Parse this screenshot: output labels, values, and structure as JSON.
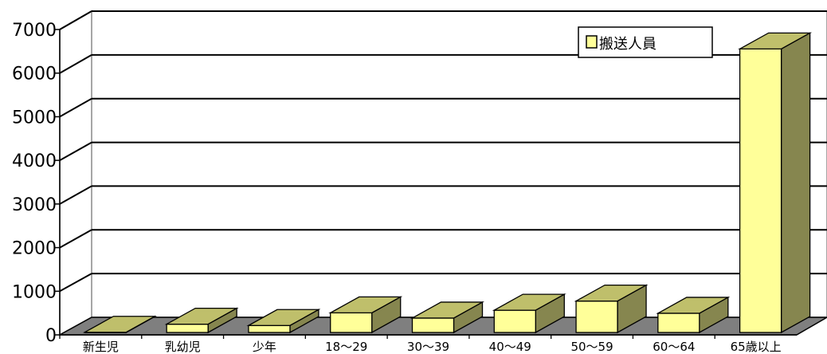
{
  "chart_data": {
    "type": "bar",
    "categories": [
      "新生児",
      "乳幼児",
      "少年",
      "18～29",
      "30～39",
      "40～49",
      "50～59",
      "60～64",
      "65歳以上"
    ],
    "series": [
      {
        "name": "搬送人員",
        "values": [
          5,
          190,
          160,
          450,
          330,
          510,
          720,
          440,
          6500
        ]
      }
    ],
    "y_ticks": [
      "0",
      "1000",
      "2000",
      "3000",
      "4000",
      "5000",
      "6000",
      "7000"
    ],
    "ylim": [
      0,
      7000
    ],
    "grid": true,
    "legend_position": "top-right",
    "colors": {
      "bar_front": "#ffff99",
      "bar_top": "#bfbf6b",
      "bar_side": "#86864f",
      "floor": "#7f7f7f",
      "wall_border": "#a6a6a6",
      "gridline": "#000000"
    }
  }
}
